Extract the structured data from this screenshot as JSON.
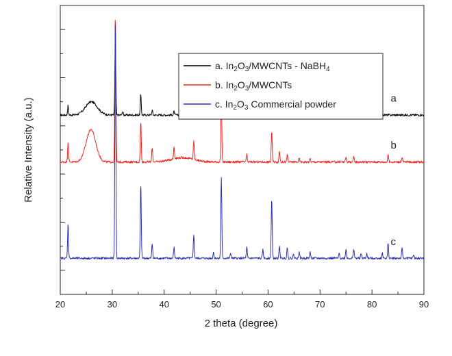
{
  "chart_data": {
    "type": "line",
    "xlabel": "2 theta (degree)",
    "ylabel": "Relative Intensity (a.u.)",
    "xlim": [
      20,
      90
    ],
    "x_ticks": [
      "20",
      "30",
      "40",
      "50",
      "60",
      "70",
      "80",
      "90"
    ],
    "y_ticks_labeled": false,
    "grid": false,
    "legend": {
      "placement": "top-right",
      "entries": [
        {
          "series": "a",
          "prefix": "a. In",
          "sub1": "2",
          "mid1": "O",
          "sub2": "3",
          "suffix": "/MWCNTs - NaBH",
          "sub3": "4"
        },
        {
          "series": "b",
          "prefix": "b. In",
          "sub1": "2",
          "mid1": "O",
          "sub2": "3",
          "suffix": "/MWCNTs",
          "sub3": ""
        },
        {
          "series": "c",
          "prefix": "c. In",
          "sub1": "2",
          "mid1": "O",
          "sub2": "3",
          "suffix": " Commercial powder",
          "sub3": ""
        }
      ]
    },
    "ylim": [
      0,
      12
    ],
    "series": [
      {
        "name": "a",
        "label": "a",
        "color": "#000000",
        "baseline": 7.45,
        "broad_humps": [
          {
            "x": 26.0,
            "height": 0.55,
            "width": 1.6
          }
        ],
        "peaks": [
          [
            21.5,
            0.4
          ],
          [
            30.6,
            3.2
          ],
          [
            32.0,
            0.15
          ],
          [
            35.5,
            0.85
          ],
          [
            37.7,
            0.2
          ],
          [
            41.9,
            0.15
          ],
          [
            45.7,
            0.3
          ],
          [
            51.0,
            0.95
          ],
          [
            55.9,
            0.15
          ],
          [
            60.7,
            0.65
          ],
          [
            62.2,
            0.15
          ],
          [
            63.7,
            0.12
          ]
        ]
      },
      {
        "name": "b",
        "label": "b",
        "color": "#e8261d",
        "baseline": 5.5,
        "broad_humps": [
          {
            "x": 25.9,
            "height": 1.35,
            "width": 1.3
          },
          {
            "x": 43.5,
            "height": 0.18,
            "width": 3.0
          }
        ],
        "peaks": [
          [
            21.5,
            0.85
          ],
          [
            30.6,
            6.2
          ],
          [
            35.5,
            1.7
          ],
          [
            37.7,
            0.6
          ],
          [
            41.9,
            0.5
          ],
          [
            45.7,
            0.75
          ],
          [
            51.0,
            2.6
          ],
          [
            55.9,
            0.3
          ],
          [
            60.7,
            1.3
          ],
          [
            62.2,
            0.45
          ],
          [
            63.7,
            0.3
          ],
          [
            66.0,
            0.15
          ],
          [
            68.1,
            0.15
          ],
          [
            75.0,
            0.2
          ],
          [
            76.5,
            0.2
          ],
          [
            83.1,
            0.3
          ],
          [
            85.8,
            0.2
          ]
        ]
      },
      {
        "name": "c",
        "label": "c",
        "color": "#2e2eb0",
        "baseline": 1.5,
        "broad_humps": [],
        "peaks": [
          [
            21.5,
            1.45
          ],
          [
            30.6,
            10.2
          ],
          [
            35.5,
            3.1
          ],
          [
            37.7,
            0.6
          ],
          [
            41.9,
            0.45
          ],
          [
            45.7,
            1.0
          ],
          [
            49.5,
            0.25
          ],
          [
            51.0,
            3.4
          ],
          [
            52.8,
            0.2
          ],
          [
            55.9,
            0.45
          ],
          [
            59.0,
            0.35
          ],
          [
            60.7,
            2.5
          ],
          [
            62.2,
            0.5
          ],
          [
            63.7,
            0.45
          ],
          [
            64.9,
            0.15
          ],
          [
            66.0,
            0.25
          ],
          [
            68.1,
            0.25
          ],
          [
            73.7,
            0.2
          ],
          [
            75.0,
            0.4
          ],
          [
            76.5,
            0.4
          ],
          [
            77.9,
            0.2
          ],
          [
            79.0,
            0.2
          ],
          [
            82.0,
            0.2
          ],
          [
            83.1,
            0.6
          ],
          [
            85.8,
            0.4
          ],
          [
            88.0,
            0.15
          ]
        ]
      }
    ]
  }
}
